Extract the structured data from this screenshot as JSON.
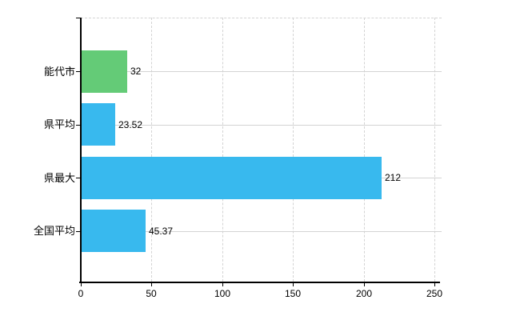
{
  "chart_data": {
    "type": "bar",
    "orientation": "horizontal",
    "title": "",
    "xlabel": "",
    "ylabel": "",
    "categories": [
      "能代市",
      "県平均",
      "県最大",
      "全国平均"
    ],
    "values": [
      32,
      23.52,
      212,
      45.37
    ],
    "value_labels": [
      "32",
      "23.52",
      "212",
      "45.37"
    ],
    "bar_colors": [
      "#64cb77",
      "#38b9ee",
      "#38b9ee",
      "#38b9ee"
    ],
    "x_ticks": [
      0,
      50,
      100,
      150,
      200,
      250
    ],
    "x_tick_labels": [
      "0",
      "50",
      "100",
      "150",
      "200",
      "250"
    ],
    "xlim": [
      0,
      250
    ],
    "grid": true,
    "legend": false,
    "background_color": "#ffffff",
    "axis_color": "#000000",
    "gridline_color": "#d3d3d3",
    "text_color": "#000000"
  }
}
